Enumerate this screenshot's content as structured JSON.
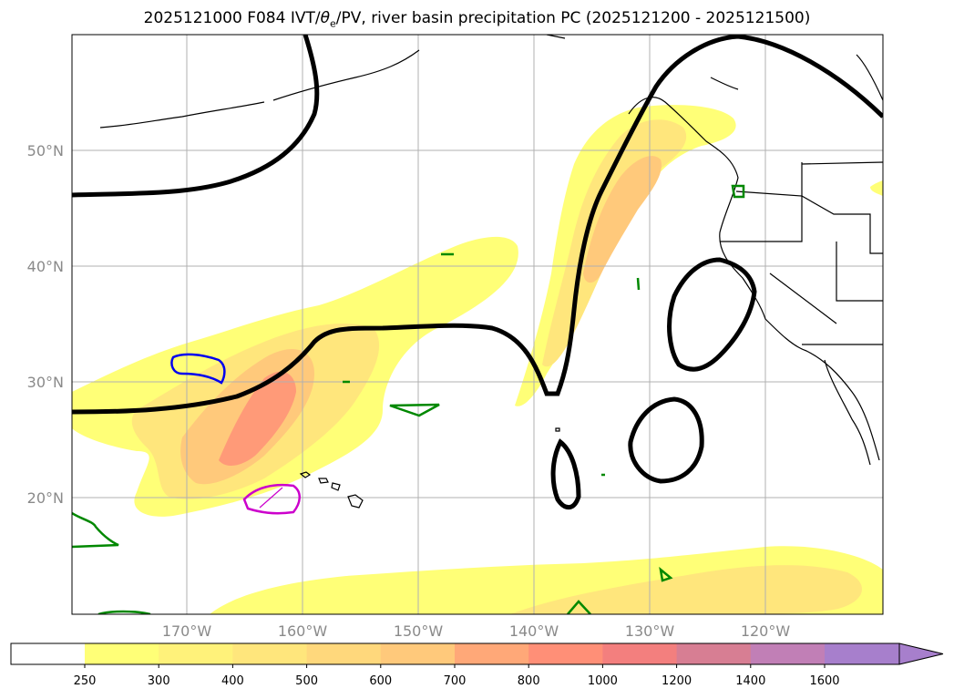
{
  "title": {
    "prefix": "2025121000 F084 IVT/",
    "theta": "θ",
    "theta_sub": "e",
    "suffix": "/PV, river basin precipitation PC (2025121200 - 2025121500)"
  },
  "lat_labels": [
    "50°N",
    "40°N",
    "30°N",
    "20°N"
  ],
  "lon_labels": [
    "170°W",
    "160°W",
    "150°W",
    "140°W",
    "130°W",
    "120°W"
  ],
  "colorbar": {
    "ticks": [
      "250",
      "300",
      "400",
      "500",
      "600",
      "700",
      "800",
      "1000",
      "1200",
      "1400",
      "1600"
    ],
    "colors": [
      "#ffff77",
      "#fff27a",
      "#ffe67c",
      "#ffd87c",
      "#ffc97b",
      "#ffa878",
      "#ff8f77",
      "#f37f7e",
      "#d77e93",
      "#c17fb6",
      "#a77fcc"
    ]
  }
}
